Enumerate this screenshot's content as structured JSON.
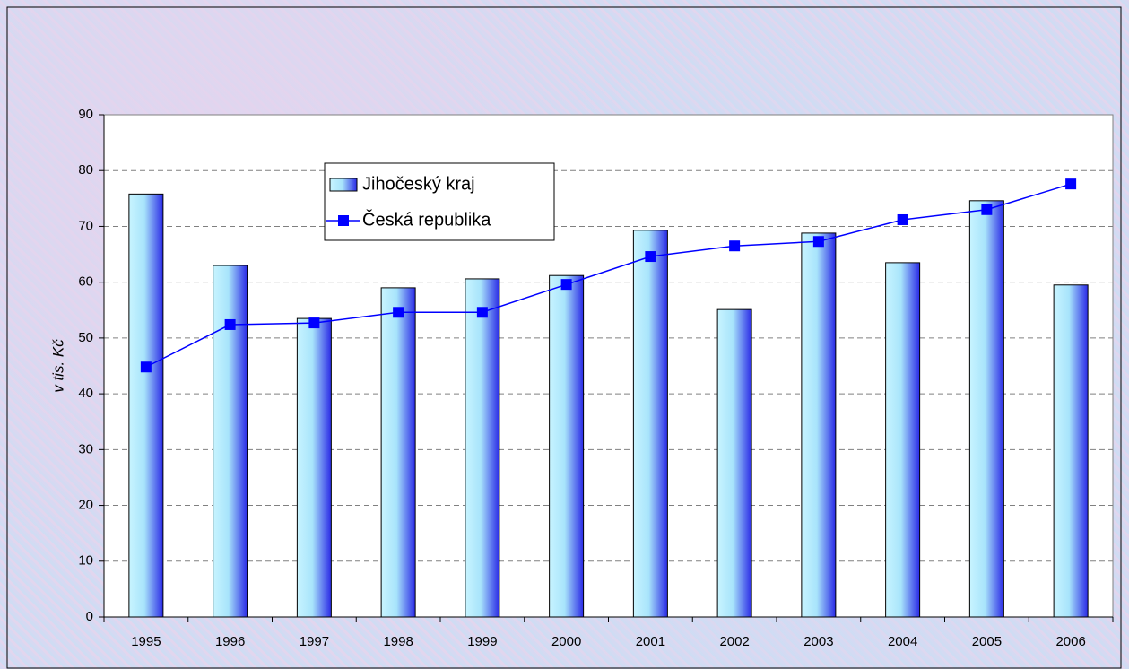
{
  "chart_data": {
    "type": "bar-line",
    "y_label": "v tis. Kč",
    "categories": [
      "1995",
      "1996",
      "1997",
      "1998",
      "1999",
      "2000",
      "2001",
      "2002",
      "2003",
      "2004",
      "2005",
      "2006"
    ],
    "series": [
      {
        "name": "Jihočeský kraj",
        "type": "bar",
        "color": "#2a2ae6",
        "values": [
          75.8,
          63.0,
          53.5,
          59.0,
          60.6,
          61.2,
          69.3,
          55.1,
          68.8,
          63.5,
          74.6,
          59.5
        ]
      },
      {
        "name": "Česká republika",
        "type": "line",
        "color": "#0000ff",
        "values": [
          44.8,
          52.4,
          52.7,
          54.6,
          54.6,
          59.6,
          64.6,
          66.5,
          67.3,
          71.2,
          73.0,
          77.6
        ]
      }
    ],
    "ylim": [
      0,
      90
    ],
    "yticks": [
      0,
      10,
      20,
      30,
      40,
      50,
      60,
      70,
      80,
      90
    ],
    "grid": true
  }
}
